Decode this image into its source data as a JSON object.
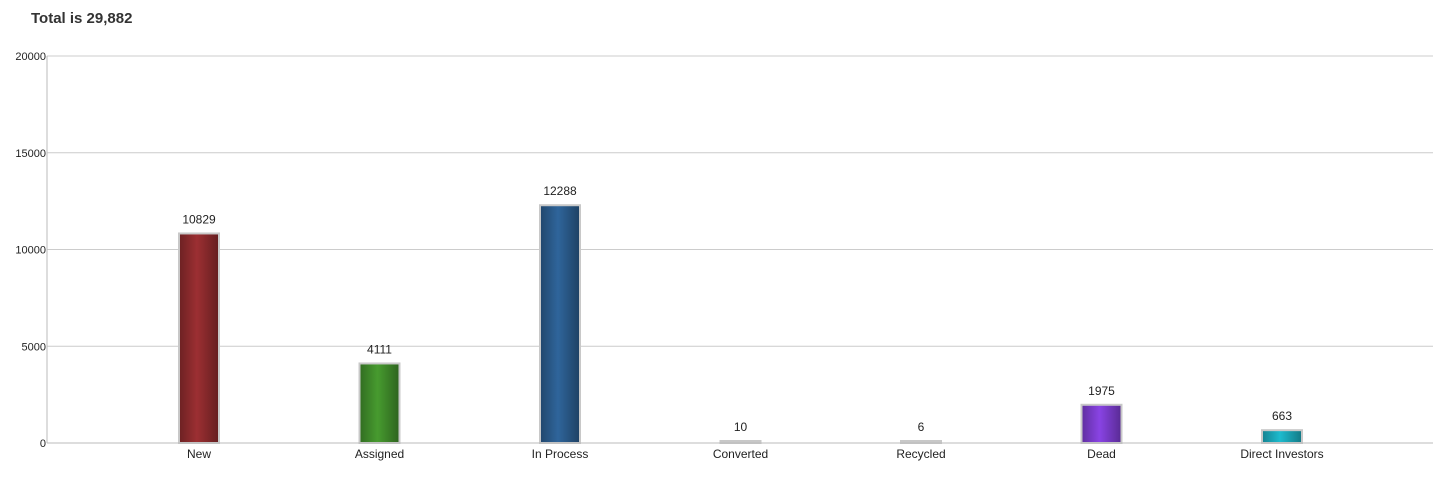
{
  "header": {
    "total_text": "Total is 29,882"
  },
  "chart_data": {
    "type": "bar",
    "title": "Total is 29,882",
    "categories": [
      "New",
      "Assigned",
      "In Process",
      "Converted",
      "Recycled",
      "Dead",
      "Direct Investors"
    ],
    "values": [
      10829,
      4111,
      12288,
      10,
      6,
      1975,
      663
    ],
    "colors": [
      "#8b2a2d",
      "#3f8a2a",
      "#2a5a8a",
      "#c8c8c8",
      "#c8c8c8",
      "#7a3ccc",
      "#1aa7b8"
    ],
    "ylim": [
      0,
      20000
    ],
    "yticks": [
      0,
      5000,
      10000,
      15000,
      20000
    ],
    "grid": true,
    "legend": "none",
    "xlabel": "",
    "ylabel": ""
  }
}
